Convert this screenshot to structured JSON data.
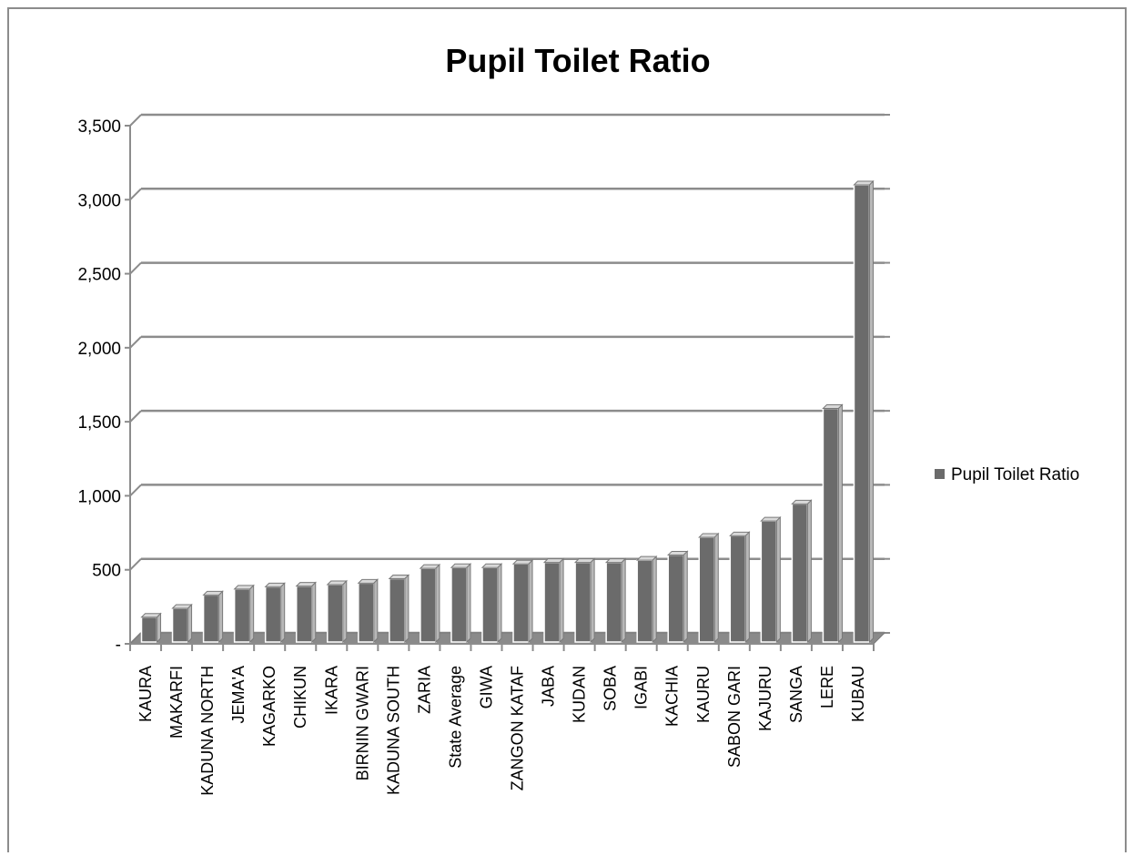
{
  "chart_data": {
    "type": "bar",
    "title": "Pupil Toilet Ratio",
    "xlabel": "",
    "ylabel": "",
    "ylim": [
      0,
      3500
    ],
    "yticks": [
      {
        "value": 0,
        "label": "-"
      },
      {
        "value": 500,
        "label": "500"
      },
      {
        "value": 1000,
        "label": "1,000"
      },
      {
        "value": 1500,
        "label": "1,500"
      },
      {
        "value": 2000,
        "label": "2,000"
      },
      {
        "value": 2500,
        "label": "2,500"
      },
      {
        "value": 3000,
        "label": "3,000"
      },
      {
        "value": 3500,
        "label": "3,500"
      }
    ],
    "grid": true,
    "legend_position": "right",
    "bar_color": "#6b6b6b",
    "categories": [
      "KAURA",
      "MAKARFI",
      "KADUNA NORTH",
      "JEMA'A",
      "KAGARKO",
      "CHIKUN",
      "IKARA",
      "BIRNIN GWARI",
      "KADUNA SOUTH",
      "ZARIA",
      "State Average",
      "GIWA",
      "ZANGON KATAF",
      "JABA",
      "KUDAN",
      "SOBA",
      "IGABI",
      "KACHIA",
      "KAURU",
      "SABON GARI",
      "KAJURU",
      "SANGA",
      "LERE",
      "KUBAU"
    ],
    "series": [
      {
        "name": "Pupil Toilet Ratio",
        "values": [
          180,
          240,
          330,
          370,
          385,
          390,
          400,
          410,
          440,
          510,
          515,
          515,
          540,
          550,
          550,
          550,
          565,
          600,
          720,
          730,
          830,
          945,
          1590,
          3100
        ]
      }
    ]
  }
}
